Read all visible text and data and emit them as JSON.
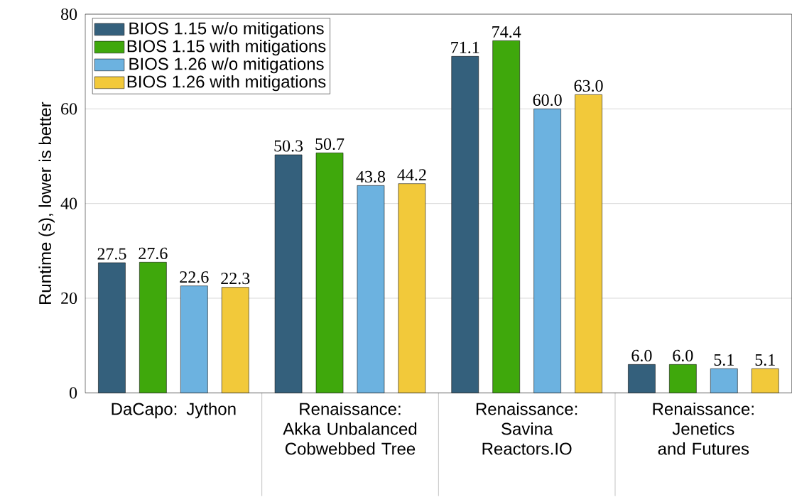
{
  "chart_data": {
    "type": "bar",
    "ylabel": "Runtime (s), lower is better",
    "categories": [
      "DaCapo: Jython",
      "Renaissance: Akka Unbalanced Cobwebbed Tree",
      "Renaissance: Savina Reactors.IO",
      "Renaissance: Jenetics and Futures"
    ],
    "series": [
      {
        "name": "BIOS 1.15 w/o mitigations",
        "color": "#34607c",
        "values": [
          27.5,
          50.3,
          71.1,
          6.0
        ],
        "value_labels": [
          "27.5",
          "50.3",
          "71.1",
          "6.0"
        ]
      },
      {
        "name": "BIOS 1.15 with mitigations",
        "color": "#3fa80c",
        "values": [
          27.6,
          50.7,
          74.4,
          6.0
        ],
        "value_labels": [
          "27.6",
          "50.7",
          "74.4",
          "6.0"
        ]
      },
      {
        "name": "BIOS 1.26 w/o mitigations",
        "color": "#6cb2e0",
        "values": [
          22.6,
          43.8,
          60.0,
          5.1
        ],
        "value_labels": [
          "22.6",
          "43.8",
          "60.0",
          "5.1"
        ]
      },
      {
        "name": "BIOS 1.26 with mitigations",
        "color": "#f2c93a",
        "values": [
          22.3,
          44.2,
          63.0,
          5.1
        ],
        "value_labels": [
          "22.3",
          "44.2",
          "63.0",
          "5.1"
        ]
      }
    ],
    "ylim": [
      0,
      80
    ],
    "yticks": [
      0,
      20,
      40,
      60,
      80
    ],
    "grid": "y",
    "legend": "top left"
  }
}
